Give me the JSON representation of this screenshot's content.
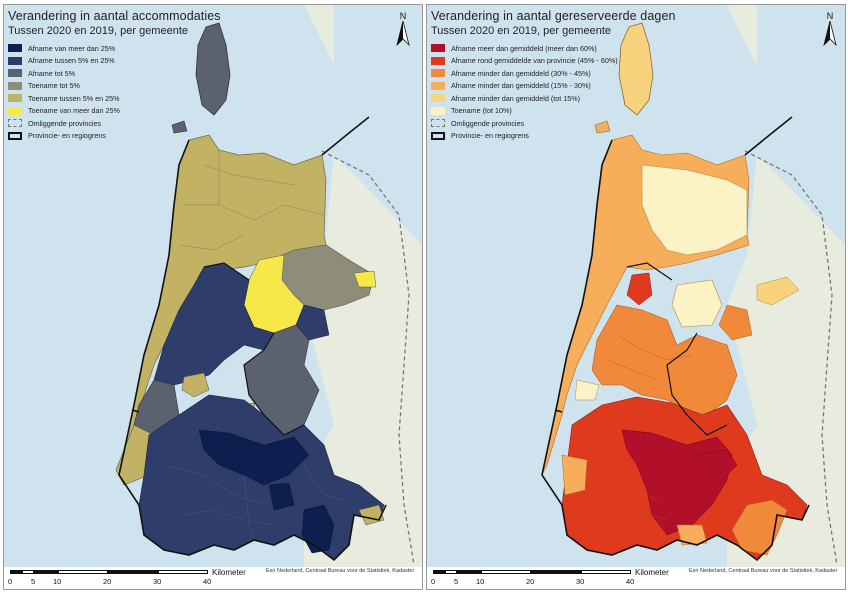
{
  "left_map": {
    "title": "Verandering in aantal accommodaties",
    "subtitle": "Tussen 2020 en 2019, per gemeente",
    "legend": [
      {
        "label": "Afname van meer dan 25%",
        "color": "#0d1f4f"
      },
      {
        "label": "Afname tussen 5% en 25%",
        "color": "#2f3d6b"
      },
      {
        "label": "Afname tot 5%",
        "color": "#5c6170"
      },
      {
        "label": "Toename tot 5%",
        "color": "#8e8d7a"
      },
      {
        "label": "Toename tussen 5% en 25%",
        "color": "#c2b263"
      },
      {
        "label": "Toename van meer dan 25%",
        "color": "#f7e84a"
      }
    ],
    "boundary_legend": [
      {
        "label": "Omliggende provincies",
        "style": "dashed"
      },
      {
        "label": "Provincie- en regiogrens",
        "style": "thick"
      }
    ]
  },
  "right_map": {
    "title": "Verandering in aantal gereserveerde dagen",
    "subtitle": "Tussen 2020 en 2019, per gemeente",
    "legend": [
      {
        "label": "Afname meer dan gemiddeld (meer dan 60%)",
        "color": "#b2102a"
      },
      {
        "label": "Afname rond gemiddelde van provincie (45% - 60%)",
        "color": "#e03a1e"
      },
      {
        "label": "Afname minder dan gemiddeld (30% - 45%)",
        "color": "#f08a3a"
      },
      {
        "label": "Afname minder dan gemiddeld (15% - 30%)",
        "color": "#f6ae5a"
      },
      {
        "label": "Afname minder dan gemiddeld (tot 15%)",
        "color": "#f9d27e"
      },
      {
        "label": "Toename (tot 10%)",
        "color": "#fbf3c6"
      }
    ],
    "boundary_legend": [
      {
        "label": "Omliggende provincies",
        "style": "dashed"
      },
      {
        "label": "Provincie- en regiogrens",
        "style": "thick"
      }
    ]
  },
  "north_label": "N",
  "scale": {
    "ticks": [
      "0",
      "5",
      "10",
      "20",
      "30",
      "40"
    ],
    "unit": "Kilometer"
  },
  "credits": "Esri Nederland, Centraal Bureau voor de Statistiek, Kadaster",
  "colors": {
    "sea": "#cfe3ef",
    "land_outside": "#ecefe6",
    "boundary": "#111111"
  }
}
